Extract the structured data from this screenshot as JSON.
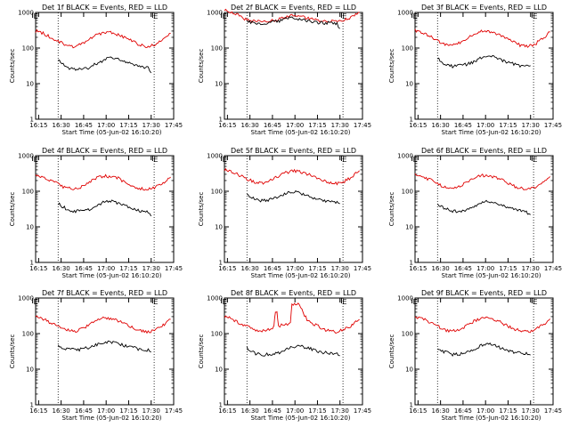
{
  "figure": {
    "start_label": "Start Time (05-Jun-02 16:10:20)",
    "ylabel": "Counts/sec",
    "marker_label": "E",
    "colors": {
      "events": "#000000",
      "lld": "#e00000",
      "axes": "#000000",
      "background": "#ffffff"
    }
  },
  "chart_data": [
    {
      "type": "line",
      "title": "Det 1f BLACK = Events, RED = LLD",
      "xlabel": "Start Time (05-Jun-02 16:10:20)",
      "ylabel": "Counts/sec",
      "x_ticks": [
        "16:15",
        "16:30",
        "16:45",
        "17:00",
        "17:15",
        "17:30",
        "17:45"
      ],
      "y_ticks": [
        "1",
        "10",
        "100",
        "1000"
      ],
      "xlim": [
        5,
        97
      ],
      "ylim": [
        1,
        1000
      ],
      "y_scale": "log",
      "vlines": [
        20,
        84
      ],
      "markers": [
        {
          "x": 3,
          "label": "E"
        },
        {
          "x": 83,
          "label": "E"
        }
      ],
      "series": [
        {
          "name": "LLD",
          "color": "#e00000",
          "x": [
            5,
            10,
            15,
            20,
            25,
            30,
            35,
            40,
            45,
            50,
            55,
            60,
            65,
            70,
            75,
            80,
            85,
            90,
            95
          ],
          "values": [
            300,
            260,
            200,
            160,
            120,
            110,
            130,
            170,
            220,
            260,
            270,
            240,
            190,
            150,
            120,
            110,
            130,
            170,
            260
          ]
        },
        {
          "name": "Events",
          "color": "#000000",
          "x": [
            20,
            25,
            30,
            35,
            40,
            45,
            50,
            55,
            60,
            65,
            70,
            75,
            80,
            82
          ],
          "values": [
            45,
            30,
            25,
            26,
            28,
            35,
            45,
            55,
            48,
            40,
            34,
            30,
            28,
            20
          ]
        }
      ]
    },
    {
      "type": "line",
      "title": "Det 2f BLACK = Events, RED = LLD",
      "xlabel": "Start Time (05-Jun-02 16:10:20)",
      "ylabel": "Counts/sec",
      "x_ticks": [
        "16:15",
        "16:30",
        "16:45",
        "17:00",
        "17:15",
        "17:30",
        "17:45"
      ],
      "y_ticks": [
        "1",
        "10",
        "100",
        "1000"
      ],
      "xlim": [
        5,
        97
      ],
      "ylim": [
        1,
        1000
      ],
      "y_scale": "log",
      "vlines": [
        20,
        84
      ],
      "markers": [
        {
          "x": 3,
          "label": "E"
        },
        {
          "x": 83,
          "label": "E"
        }
      ],
      "series": [
        {
          "name": "LLD",
          "color": "#e00000",
          "x": [
            5,
            10,
            15,
            20,
            25,
            30,
            35,
            40,
            45,
            50,
            55,
            60,
            65,
            70,
            75,
            80,
            85,
            90,
            95
          ],
          "values": [
            1200,
            1000,
            800,
            620,
            560,
            540,
            560,
            620,
            720,
            820,
            800,
            700,
            620,
            560,
            550,
            560,
            620,
            760,
            1000
          ]
        },
        {
          "name": "Events",
          "color": "#000000",
          "x": [
            20,
            25,
            30,
            35,
            40,
            45,
            50,
            55,
            60,
            65,
            70,
            75,
            80,
            82
          ],
          "values": [
            540,
            520,
            500,
            510,
            560,
            650,
            720,
            660,
            580,
            530,
            510,
            500,
            500,
            350
          ]
        }
      ]
    },
    {
      "type": "line",
      "title": "Det 3f BLACK = Events, RED = LLD",
      "xlabel": "Start Time (05-Jun-02 16:10:20)",
      "ylabel": "Counts/sec",
      "x_ticks": [
        "16:15",
        "16:30",
        "16:45",
        "17:00",
        "17:15",
        "17:30",
        "17:45"
      ],
      "y_ticks": [
        "1",
        "10",
        "100",
        "1000"
      ],
      "xlim": [
        5,
        97
      ],
      "ylim": [
        1,
        1000
      ],
      "y_scale": "log",
      "vlines": [
        20,
        84
      ],
      "markers": [
        {
          "x": 3,
          "label": "E"
        },
        {
          "x": 83,
          "label": "E"
        }
      ],
      "series": [
        {
          "name": "LLD",
          "color": "#e00000",
          "x": [
            5,
            10,
            15,
            20,
            25,
            30,
            35,
            40,
            45,
            50,
            55,
            60,
            65,
            70,
            75,
            80,
            85,
            90,
            95
          ],
          "values": [
            320,
            280,
            210,
            160,
            130,
            120,
            140,
            190,
            250,
            300,
            290,
            250,
            190,
            150,
            120,
            110,
            130,
            180,
            280
          ]
        },
        {
          "name": "Events",
          "color": "#000000",
          "x": [
            20,
            25,
            30,
            35,
            40,
            45,
            50,
            55,
            60,
            65,
            70,
            75,
            80,
            82
          ],
          "values": [
            50,
            35,
            30,
            32,
            35,
            42,
            55,
            60,
            50,
            42,
            36,
            32,
            30,
            32
          ]
        }
      ]
    },
    {
      "type": "line",
      "title": "Det 4f BLACK = Events, RED = LLD",
      "xlabel": "Start Time (05-Jun-02 16:10:20)",
      "ylabel": "Counts/sec",
      "x_ticks": [
        "16:15",
        "16:30",
        "16:45",
        "17:00",
        "17:15",
        "17:30",
        "17:45"
      ],
      "y_ticks": [
        "1",
        "10",
        "100",
        "1000"
      ],
      "xlim": [
        5,
        97
      ],
      "ylim": [
        1,
        1000
      ],
      "y_scale": "log",
      "vlines": [
        20,
        84
      ],
      "markers": [
        {
          "x": 3,
          "label": "E"
        },
        {
          "x": 83,
          "label": "E"
        }
      ],
      "series": [
        {
          "name": "LLD",
          "color": "#e00000",
          "x": [
            5,
            10,
            15,
            20,
            25,
            30,
            35,
            40,
            45,
            50,
            55,
            60,
            65,
            70,
            75,
            80,
            85,
            90,
            95
          ],
          "values": [
            290,
            260,
            200,
            160,
            125,
            115,
            130,
            170,
            230,
            270,
            260,
            230,
            180,
            140,
            120,
            110,
            130,
            170,
            250
          ]
        },
        {
          "name": "Events",
          "color": "#000000",
          "x": [
            20,
            25,
            30,
            35,
            40,
            45,
            50,
            55,
            60,
            65,
            70,
            75,
            80,
            82
          ],
          "values": [
            45,
            33,
            28,
            28,
            30,
            38,
            50,
            52,
            45,
            38,
            32,
            28,
            25,
            20
          ]
        }
      ]
    },
    {
      "type": "line",
      "title": "Det 5f BLACK = Events, RED = LLD",
      "xlabel": "Start Time (05-Jun-02 16:10:20)",
      "ylabel": "Counts/sec",
      "x_ticks": [
        "16:15",
        "16:30",
        "16:45",
        "17:00",
        "17:15",
        "17:30",
        "17:45"
      ],
      "y_ticks": [
        "1",
        "10",
        "100",
        "1000"
      ],
      "xlim": [
        5,
        97
      ],
      "ylim": [
        1,
        1000
      ],
      "y_scale": "log",
      "vlines": [
        20,
        84
      ],
      "markers": [
        {
          "x": 3,
          "label": "E"
        },
        {
          "x": 83,
          "label": "E"
        }
      ],
      "series": [
        {
          "name": "LLD",
          "color": "#e00000",
          "x": [
            5,
            10,
            15,
            20,
            25,
            30,
            35,
            40,
            45,
            50,
            55,
            60,
            65,
            70,
            75,
            80,
            85,
            90,
            95
          ],
          "values": [
            400,
            360,
            280,
            220,
            180,
            170,
            190,
            250,
            320,
            370,
            360,
            310,
            250,
            200,
            170,
            165,
            190,
            250,
            380
          ]
        },
        {
          "name": "Events",
          "color": "#000000",
          "x": [
            20,
            25,
            30,
            35,
            40,
            45,
            50,
            55,
            60,
            65,
            70,
            75,
            80,
            82
          ],
          "values": [
            80,
            60,
            55,
            58,
            65,
            80,
            100,
            90,
            75,
            62,
            55,
            50,
            48,
            45
          ]
        }
      ]
    },
    {
      "type": "line",
      "title": "Det 6f BLACK = Events, RED = LLD",
      "xlabel": "Start Time (05-Jun-02 16:10:20)",
      "ylabel": "Counts/sec",
      "x_ticks": [
        "16:15",
        "16:30",
        "16:45",
        "17:00",
        "17:15",
        "17:30",
        "17:45"
      ],
      "y_ticks": [
        "1",
        "10",
        "100",
        "1000"
      ],
      "xlim": [
        5,
        97
      ],
      "ylim": [
        1,
        1000
      ],
      "y_scale": "log",
      "vlines": [
        20,
        84
      ],
      "markers": [
        {
          "x": 3,
          "label": "E"
        },
        {
          "x": 83,
          "label": "E"
        }
      ],
      "series": [
        {
          "name": "LLD",
          "color": "#e00000",
          "x": [
            5,
            10,
            15,
            20,
            25,
            30,
            35,
            40,
            45,
            50,
            55,
            60,
            65,
            70,
            75,
            80,
            85,
            90,
            95
          ],
          "values": [
            310,
            270,
            210,
            160,
            130,
            120,
            135,
            180,
            240,
            280,
            270,
            240,
            185,
            145,
            120,
            110,
            130,
            175,
            260
          ]
        },
        {
          "name": "Events",
          "color": "#000000",
          "x": [
            20,
            25,
            30,
            35,
            40,
            45,
            50,
            55,
            60,
            65,
            70,
            75,
            80,
            82
          ],
          "values": [
            45,
            32,
            28,
            28,
            30,
            38,
            50,
            52,
            45,
            38,
            32,
            28,
            25,
            22
          ]
        }
      ]
    },
    {
      "type": "line",
      "title": "Det 7f BLACK = Events, RED = LLD",
      "xlabel": "Start Time (05-Jun-02 16:10:20)",
      "ylabel": "Counts/sec",
      "x_ticks": [
        "16:15",
        "16:30",
        "16:45",
        "17:00",
        "17:15",
        "17:30",
        "17:45"
      ],
      "y_ticks": [
        "1",
        "10",
        "100",
        "1000"
      ],
      "xlim": [
        5,
        97
      ],
      "ylim": [
        1,
        1000
      ],
      "y_scale": "log",
      "vlines": [
        20,
        84
      ],
      "markers": [
        {
          "x": 3,
          "label": "E"
        },
        {
          "x": 83,
          "label": "E"
        }
      ],
      "series": [
        {
          "name": "LLD",
          "color": "#e00000",
          "x": [
            5,
            10,
            15,
            20,
            25,
            30,
            35,
            40,
            45,
            50,
            55,
            60,
            65,
            70,
            75,
            80,
            85,
            90,
            95
          ],
          "values": [
            300,
            260,
            200,
            160,
            125,
            115,
            130,
            170,
            230,
            270,
            260,
            230,
            180,
            140,
            118,
            110,
            130,
            170,
            250
          ]
        },
        {
          "name": "Events",
          "color": "#000000",
          "x": [
            20,
            25,
            30,
            35,
            40,
            45,
            50,
            55,
            60,
            65,
            70,
            75,
            80,
            82
          ],
          "values": [
            45,
            38,
            35,
            36,
            40,
            48,
            55,
            58,
            52,
            45,
            40,
            36,
            34,
            30
          ]
        }
      ]
    },
    {
      "type": "line",
      "title": "Det 8f BLACK = Events, RED = LLD",
      "xlabel": "Start Time (05-Jun-02 16:10:20)",
      "ylabel": "Counts/sec",
      "x_ticks": [
        "16:15",
        "16:30",
        "16:45",
        "17:00",
        "17:15",
        "17:30",
        "17:45"
      ],
      "y_ticks": [
        "1",
        "10",
        "100",
        "1000"
      ],
      "xlim": [
        5,
        97
      ],
      "ylim": [
        1,
        1000
      ],
      "y_scale": "log",
      "vlines": [
        20,
        84
      ],
      "markers": [
        {
          "x": 3,
          "label": "E"
        },
        {
          "x": 83,
          "label": "E"
        }
      ],
      "series": [
        {
          "name": "LLD",
          "color": "#e00000",
          "x": [
            5,
            10,
            15,
            20,
            25,
            30,
            35,
            38,
            39,
            40,
            41,
            45,
            49,
            50,
            55,
            60,
            65,
            70,
            75,
            80,
            85,
            90,
            95
          ],
          "values": [
            300,
            260,
            200,
            160,
            125,
            115,
            130,
            160,
            400,
            450,
            160,
            180,
            200,
            700,
            650,
            240,
            180,
            140,
            118,
            110,
            130,
            170,
            250
          ]
        },
        {
          "name": "Events",
          "color": "#000000",
          "x": [
            20,
            25,
            30,
            35,
            40,
            45,
            50,
            55,
            60,
            65,
            70,
            75,
            80,
            82
          ],
          "values": [
            40,
            28,
            25,
            26,
            28,
            33,
            42,
            44,
            40,
            34,
            30,
            28,
            26,
            24
          ]
        }
      ]
    },
    {
      "type": "line",
      "title": "Det 9f BLACK = Events, RED = LLD",
      "xlabel": "Start Time (05-Jun-02 16:10:20)",
      "ylabel": "Counts/sec",
      "x_ticks": [
        "16:15",
        "16:30",
        "16:45",
        "17:00",
        "17:15",
        "17:30",
        "17:45"
      ],
      "y_ticks": [
        "1",
        "10",
        "100",
        "1000"
      ],
      "xlim": [
        5,
        97
      ],
      "ylim": [
        1,
        1000
      ],
      "y_scale": "log",
      "vlines": [
        20,
        84
      ],
      "markers": [
        {
          "x": 3,
          "label": "E"
        },
        {
          "x": 83,
          "label": "E"
        }
      ],
      "series": [
        {
          "name": "LLD",
          "color": "#e00000",
          "x": [
            5,
            10,
            15,
            20,
            25,
            30,
            35,
            40,
            45,
            50,
            55,
            60,
            65,
            70,
            75,
            80,
            85,
            90,
            95
          ],
          "values": [
            300,
            260,
            200,
            160,
            125,
            115,
            130,
            170,
            230,
            270,
            260,
            230,
            180,
            140,
            118,
            110,
            130,
            170,
            260
          ]
        },
        {
          "name": "Events",
          "color": "#000000",
          "x": [
            20,
            25,
            30,
            35,
            40,
            45,
            50,
            55,
            60,
            65,
            70,
            75,
            80,
            82
          ],
          "values": [
            40,
            30,
            26,
            27,
            30,
            36,
            48,
            50,
            43,
            36,
            31,
            28,
            27,
            25
          ]
        }
      ]
    }
  ]
}
